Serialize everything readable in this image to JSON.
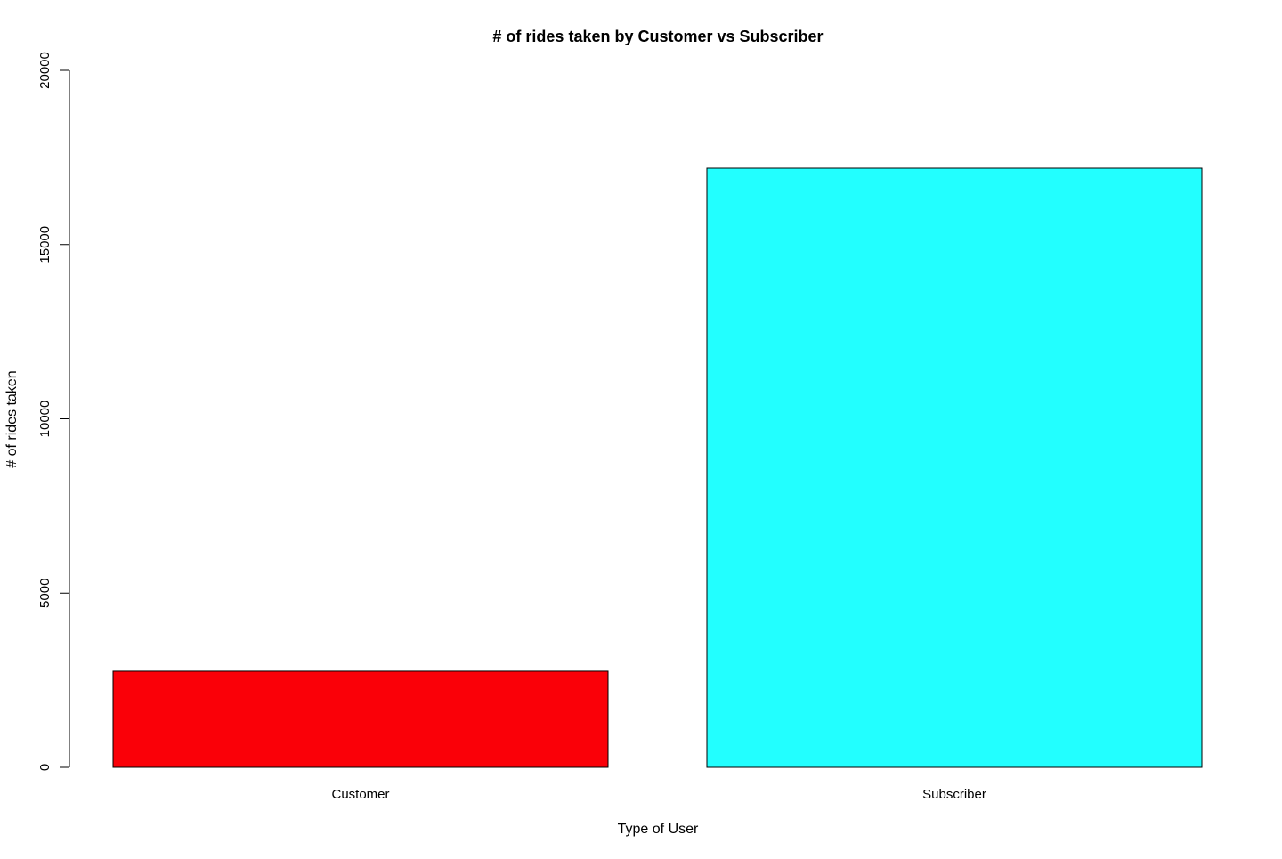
{
  "chart_data": {
    "type": "bar",
    "title": "# of rides taken by Customer vs Subscriber",
    "xlabel": "Type of User",
    "ylabel": "# of rides taken",
    "categories": [
      "Customer",
      "Subscriber"
    ],
    "values": [
      2760,
      17190
    ],
    "colors": [
      "#FA0008",
      "#22FFFF"
    ],
    "ylim": [
      0,
      20000
    ],
    "yticks": [
      0,
      5000,
      10000,
      15000,
      20000
    ],
    "ytick_labels": [
      "0",
      "5000",
      "10000",
      "15000",
      "20000"
    ],
    "grid": false,
    "legend": "none"
  }
}
